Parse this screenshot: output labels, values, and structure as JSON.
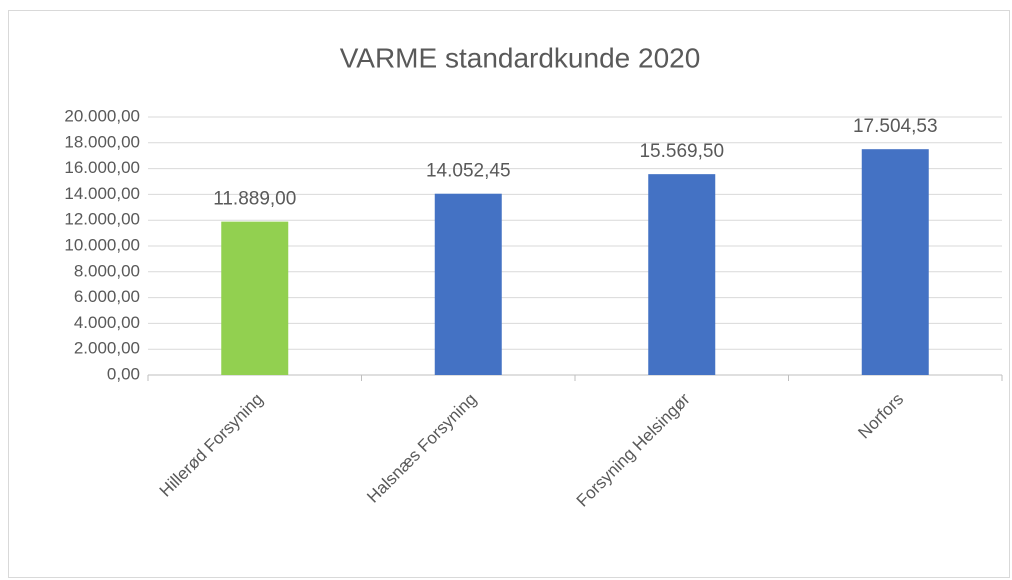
{
  "chart_data": {
    "type": "bar",
    "title": "VARME standardkunde 2020",
    "categories": [
      "Hillerød Forsyning",
      "Halsnæs Forsyning",
      "Forsyning Helsingør",
      "Norfors"
    ],
    "values": [
      11889,
      14052.45,
      15569.5,
      17504.53
    ],
    "value_labels": [
      "11.889,00",
      "14.052,45",
      "15.569,50",
      "17.504,53"
    ],
    "colors": [
      "#92d050",
      "#4472c4",
      "#4472c4",
      "#4472c4"
    ],
    "ylim": [
      0,
      20000
    ],
    "yticks": [
      {
        "value": 0,
        "label": "0,00"
      },
      {
        "value": 2000,
        "label": "2.000,00"
      },
      {
        "value": 4000,
        "label": "4.000,00"
      },
      {
        "value": 6000,
        "label": "6.000,00"
      },
      {
        "value": 8000,
        "label": "8.000,00"
      },
      {
        "value": 10000,
        "label": "10.000,00"
      },
      {
        "value": 12000,
        "label": "12.000,00"
      },
      {
        "value": 14000,
        "label": "14.000,00"
      },
      {
        "value": 16000,
        "label": "16.000,00"
      },
      {
        "value": 18000,
        "label": "18.000,00"
      },
      {
        "value": 20000,
        "label": "20.000,00"
      }
    ],
    "grid": true
  }
}
